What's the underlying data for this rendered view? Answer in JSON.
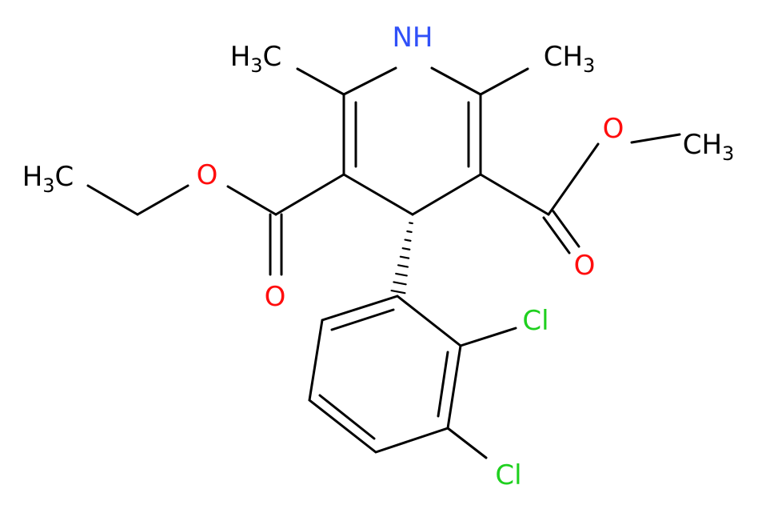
{
  "atoms": [
    {
      "label": "NH"
    },
    {
      "label": "H",
      "sub": "3",
      "end": "C"
    },
    {
      "label": "CH",
      "sub": "3"
    },
    {
      "label": "O"
    },
    {
      "label": "CH",
      "sub": "3"
    },
    {
      "label": "O"
    },
    {
      "label": "H",
      "sub": "3",
      "end": "C"
    },
    {
      "label": "O"
    },
    {
      "label": "O"
    },
    {
      "label": "Cl"
    },
    {
      "label": "Cl"
    }
  ]
}
